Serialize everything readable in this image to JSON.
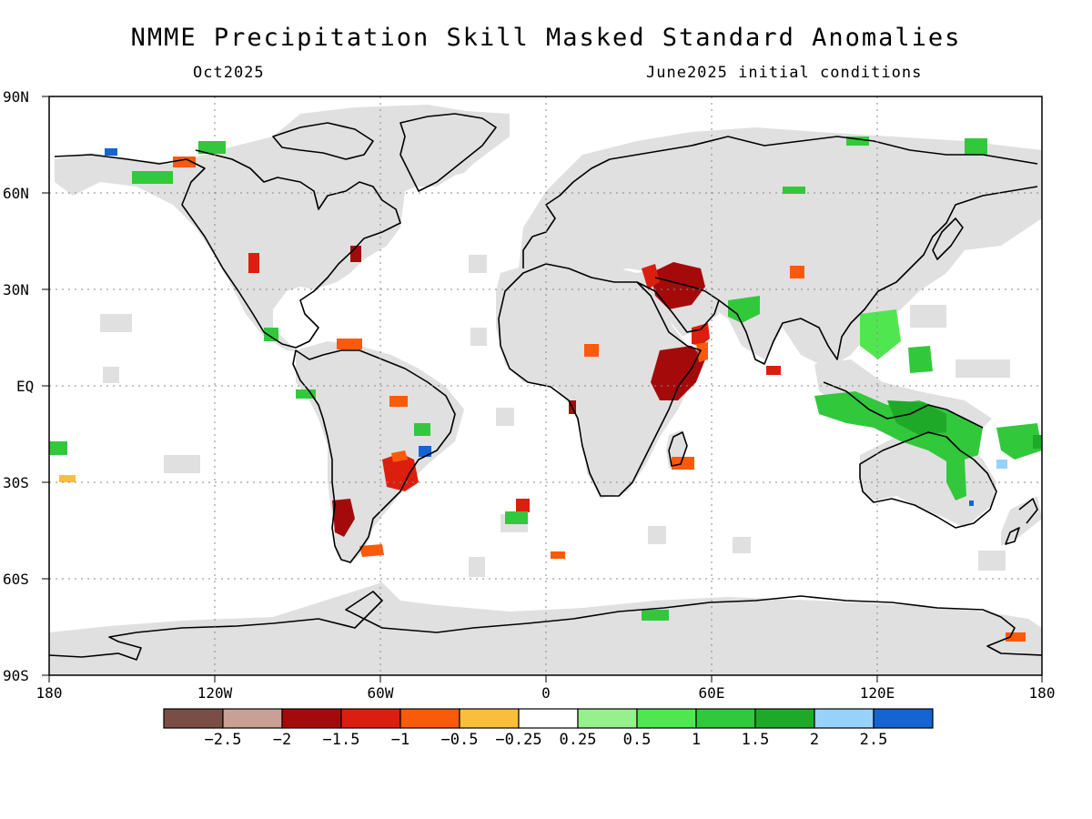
{
  "title": "NMME Precipitation Skill Masked Standard Anomalies",
  "valid_month": "Oct2025",
  "initial_conditions": "June2025 initial conditions",
  "lat_labels": [
    "90N",
    "60N",
    "30N",
    "EQ",
    "30S",
    "60S",
    "90S"
  ],
  "lon_labels": [
    "180",
    "120W",
    "60W",
    "0",
    "60E",
    "120E",
    "180"
  ],
  "colorbar": {
    "colors": [
      "#7a4e45",
      "#c8a094",
      "#a50a0a",
      "#dc1e0f",
      "#fa5a0a",
      "#fabe3c",
      "#ffffff",
      "#96f08c",
      "#50e650",
      "#32c83c",
      "#1eaa28",
      "#96d2fa",
      "#1464d2"
    ],
    "labels": [
      "-2.5",
      "-2",
      "-1.5",
      "-1",
      "-0.5",
      "-0.25",
      "0.25",
      "0.5",
      "1",
      "1.5",
      "2",
      "2.5"
    ]
  },
  "legend_colors": {
    "masked_land": "#e0e0e0",
    "ocean": "#ffffff",
    "coast": "#000000"
  }
}
